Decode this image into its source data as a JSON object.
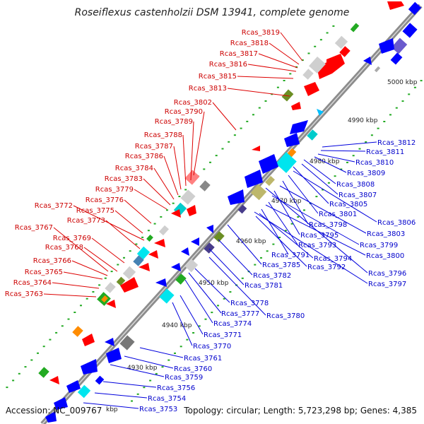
{
  "header": {
    "title": "Roseiflexus castenholzii DSM 13941, complete genome"
  },
  "footer": {
    "accession": "Accession: NC_009767",
    "topology": "Topology: circular; Length: 5,723,298 bp; Genes: 4,385"
  },
  "colors": {
    "backbone": "#8c8c8c",
    "red_label": "#cc0000",
    "blue_label": "#0000cc",
    "forward_gene": "#ff0000",
    "reverse_gene": "#0000ff",
    "tick_dot": "#22aa22"
  },
  "scale_ticks": [
    "5000 kbp",
    "4990 kbp",
    "4980 kbp",
    "4970 kbp",
    "4960 kbp",
    "4950 kbp",
    "4940 kbp",
    "4930 kbp",
    "kbp"
  ],
  "forward_genes": [
    "Rcas_3819",
    "Rcas_3818",
    "Rcas_3817",
    "Rcas_3816",
    "Rcas_3815",
    "Rcas_3813",
    "Rcas_3802",
    "Rcas_3790",
    "Rcas_3789",
    "Rcas_3788",
    "Rcas_3787",
    "Rcas_3786",
    "Rcas_3784",
    "Rcas_3783",
    "Rcas_3779",
    "Rcas_3776",
    "Rcas_3772",
    "Rcas_3775",
    "Rcas_3773",
    "Rcas_3767",
    "Rcas_3769",
    "Rcas_3768",
    "Rcas_3766",
    "Rcas_3765",
    "Rcas_3764",
    "Rcas_3763"
  ],
  "reverse_genes_upper": [
    "Rcas_3812",
    "Rcas_3811",
    "Rcas_3810",
    "Rcas_3809",
    "Rcas_3808",
    "Rcas_3807",
    "Rcas_3805",
    "Rcas_3806",
    "Rcas_3801",
    "Rcas_3798",
    "Rcas_3803",
    "Rcas_3795",
    "Rcas_3799",
    "Rcas_3793",
    "Rcas_3800",
    "Rcas_3791",
    "Rcas_3794",
    "Rcas_3792",
    "Rcas_3796",
    "Rcas_3797"
  ],
  "reverse_genes_lower": [
    "Rcas_3785",
    "Rcas_3782",
    "Rcas_3781",
    "Rcas_3778",
    "Rcas_3777",
    "Rcas_3780",
    "Rcas_3774",
    "Rcas_3771",
    "Rcas_3770",
    "Rcas_3761",
    "Rcas_3760",
    "Rcas_3759",
    "Rcas_3756",
    "Rcas_3754",
    "Rcas_3753"
  ]
}
